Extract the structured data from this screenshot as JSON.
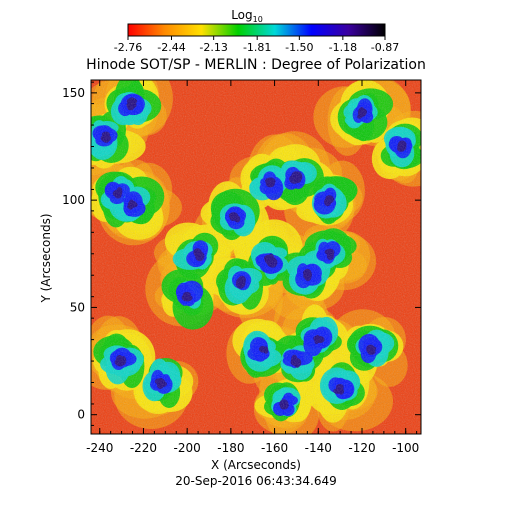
{
  "chart_data": {
    "type": "heatmap",
    "title": "Hinode SOT/SP - MERLIN : Degree of Polarization",
    "xlabel": "X (Arcseconds)",
    "ylabel": "Y (Arcseconds)",
    "timestamp": "20-Sep-2016 06:43:34.649",
    "xlim": [
      -244,
      -93
    ],
    "ylim": [
      -9,
      156
    ],
    "x_ticks": [
      -240,
      -220,
      -200,
      -180,
      -160,
      -140,
      -120,
      -100
    ],
    "y_ticks": [
      0,
      50,
      100,
      150
    ],
    "x_tick_labels": [
      "-240",
      "-220",
      "-200",
      "-180",
      "-160",
      "-140",
      "-120",
      "-100"
    ],
    "y_tick_labels": [
      "0",
      "50",
      "100",
      "150"
    ],
    "colorbar": {
      "label": "Log",
      "label_subscript": "10",
      "range": [
        -2.76,
        -0.87
      ],
      "ticks": [
        -2.76,
        -2.44,
        -2.13,
        -1.81,
        -1.5,
        -1.18,
        -0.87
      ],
      "tick_labels": [
        "-2.76",
        "-2.44",
        "-2.13",
        "-1.81",
        "-1.50",
        "-1.18",
        "-0.87"
      ],
      "colors": [
        "#ff0000",
        "#ff8a00",
        "#ffe000",
        "#00d000",
        "#00d8d8",
        "#0000ff",
        "#3a00a0",
        "#000000"
      ]
    },
    "strong_polarization_regions": [
      {
        "x": -150,
        "y": 25
      },
      {
        "x": -140,
        "y": 35
      },
      {
        "x": -165,
        "y": 30
      },
      {
        "x": -130,
        "y": 12
      },
      {
        "x": -155,
        "y": 5
      },
      {
        "x": -145,
        "y": 65
      },
      {
        "x": -135,
        "y": 75
      },
      {
        "x": -162,
        "y": 72
      },
      {
        "x": -175,
        "y": 62
      },
      {
        "x": -195,
        "y": 75
      },
      {
        "x": -200,
        "y": 55
      },
      {
        "x": -230,
        "y": 25
      },
      {
        "x": -212,
        "y": 15
      },
      {
        "x": -226,
        "y": 145
      },
      {
        "x": -238,
        "y": 130
      },
      {
        "x": -232,
        "y": 103
      },
      {
        "x": -225,
        "y": 98
      },
      {
        "x": -162,
        "y": 108
      },
      {
        "x": -150,
        "y": 110
      },
      {
        "x": -135,
        "y": 100
      },
      {
        "x": -178,
        "y": 92
      },
      {
        "x": -115,
        "y": 30
      },
      {
        "x": -102,
        "y": 125
      },
      {
        "x": -120,
        "y": 140
      }
    ]
  }
}
